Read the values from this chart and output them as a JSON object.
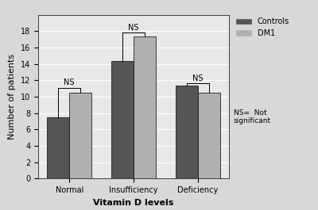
{
  "categories": [
    "Normal",
    "Insufficiency",
    "Deficiency"
  ],
  "controls": [
    7.5,
    14.3,
    11.3
  ],
  "dm1": [
    10.5,
    17.3,
    10.5
  ],
  "bar_color_controls": "#555555",
  "bar_color_dm1": "#b0b0b0",
  "xlabel": "Vitamin D levels",
  "ylabel": "Number of patients",
  "ylim": [
    0,
    20
  ],
  "yticks": [
    0,
    2,
    4,
    6,
    8,
    10,
    12,
    14,
    16,
    18
  ],
  "legend_labels": [
    "Controls",
    "DM1"
  ],
  "ns_label": "NS",
  "ns_note": "NS=  Not\nsignificant",
  "bar_width": 0.35,
  "background_color": "#e8e8e8",
  "plot_bg_color": "#e8e8e8",
  "axis_fontsize": 8,
  "tick_fontsize": 7,
  "legend_fontsize": 7,
  "ns_fontsize": 7
}
